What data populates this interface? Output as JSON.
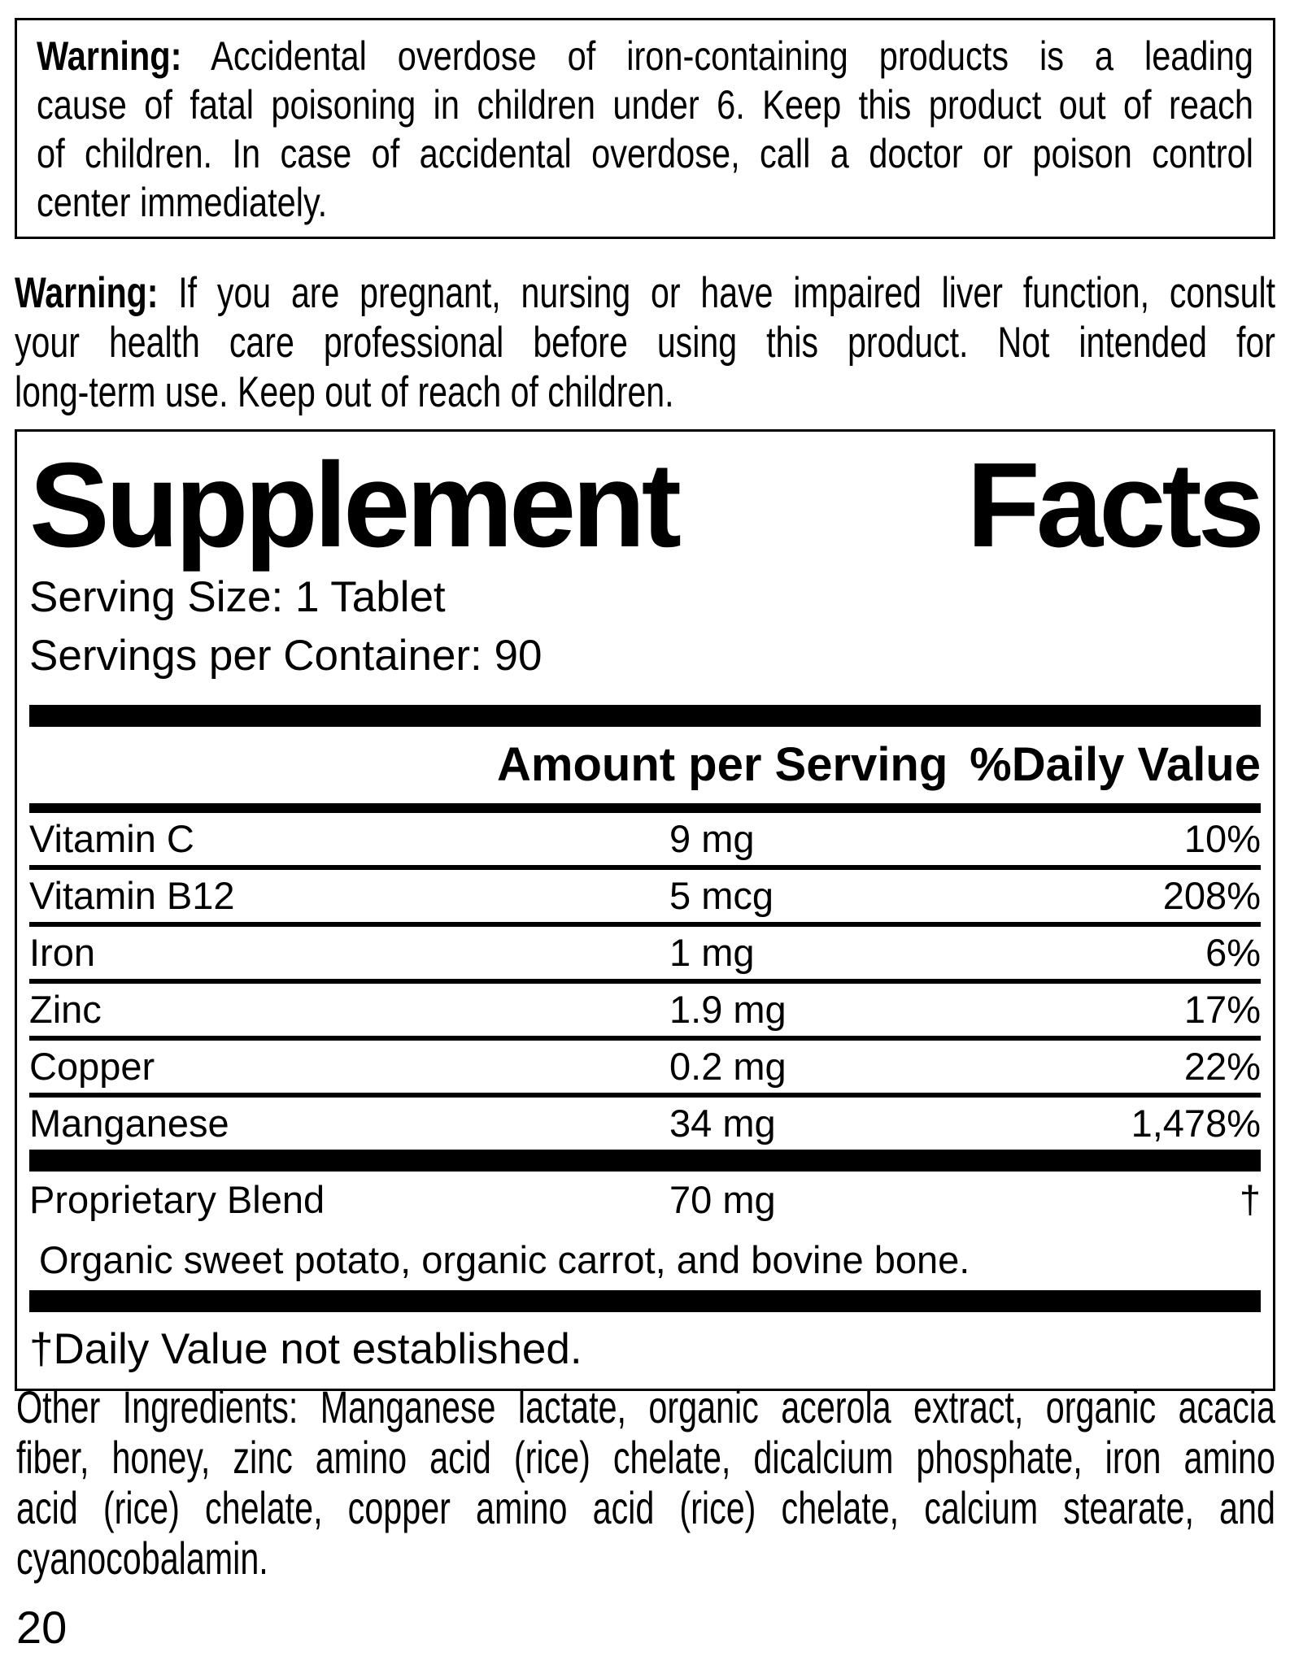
{
  "page": {
    "number": "20",
    "background_color": "#ffffff",
    "text_color": "#000000"
  },
  "warning_box": {
    "bold_prefix": "Warning:",
    "lines": [
      "Warning: Accidental overdose of iron-containing products is a leading",
      "cause of fatal poisoning in children under 6. Keep this product out of reach",
      "of children. In case of accidental overdose, call a doctor or poison control",
      "center immediately."
    ],
    "text": "Warning: Accidental overdose of iron-containing products is a leading cause of fatal poisoning in children under 6. Keep this product out of reach of children. In case of accidental overdose, call a doctor or poison control center immediately."
  },
  "warning_note": {
    "bold_prefix": "Warning:",
    "lines": [
      "Warning: If you are pregnant, nursing or have impaired liver function, consult",
      "your health care professional before using this product. Not intended for",
      "long-term use. Keep out of reach of children."
    ],
    "text": "Warning: If you are pregnant, nursing or have impaired liver function, consult your health care professional before using this product. Not intended for long-term use. Keep out of reach of children."
  },
  "supplement_facts": {
    "title_words": [
      "Supplement",
      "Facts"
    ],
    "title": "Supplement Facts",
    "serving_size": "Serving Size: 1 Tablet",
    "servings_per_container": "Servings per Container: 90",
    "columns": {
      "amount_header": "Amount per Serving",
      "daily_value_header": "%Daily Value"
    },
    "nutrients": [
      {
        "name": "Vitamin C",
        "amount": "9 mg",
        "daily_value": "10%"
      },
      {
        "name": "Vitamin B12",
        "amount": "5 mcg",
        "daily_value": "208%"
      },
      {
        "name": "Iron",
        "amount": "1 mg",
        "daily_value": "6%"
      },
      {
        "name": "Zinc",
        "amount": "1.9 mg",
        "daily_value": "17%"
      },
      {
        "name": "Copper",
        "amount": "0.2 mg",
        "daily_value": "22%"
      },
      {
        "name": "Manganese",
        "amount": "34 mg",
        "daily_value": "1,478%"
      }
    ],
    "proprietary_blend": {
      "name": "Proprietary Blend",
      "amount": "70 mg",
      "daily_value": "†",
      "description": "Organic sweet potato, organic carrot, and bovine bone."
    },
    "footnote": "†Daily Value not established."
  },
  "other_ingredients": {
    "lines": [
      "Other Ingredients: Manganese lactate, organic acerola extract, organic acacia",
      "fiber, honey, zinc amino acid (rice) chelate,  dicalcium phosphate, iron amino",
      "acid (rice) chelate, copper amino acid (rice) chelate, calcium stearate, and",
      "cyanocobalamin."
    ],
    "text": "Other Ingredients: Manganese lactate, organic acerola extract, organic acacia fiber, honey, zinc amino acid (rice) chelate, dicalcium phosphate, iron amino acid (rice) chelate, copper amino acid (rice) chelate, calcium stearate, and cyanocobalamin."
  }
}
